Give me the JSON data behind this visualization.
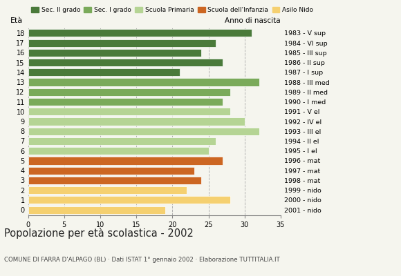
{
  "ages": [
    18,
    17,
    16,
    15,
    14,
    13,
    12,
    11,
    10,
    9,
    8,
    7,
    6,
    5,
    4,
    3,
    2,
    1,
    0
  ],
  "values": [
    31,
    26,
    24,
    27,
    21,
    32,
    28,
    27,
    28,
    30,
    32,
    26,
    25,
    27,
    23,
    24,
    22,
    28,
    19
  ],
  "right_labels": [
    "1983 - V sup",
    "1984 - VI sup",
    "1985 - III sup",
    "1986 - II sup",
    "1987 - I sup",
    "1988 - III med",
    "1989 - II med",
    "1990 - I med",
    "1991 - V el",
    "1992 - IV el",
    "1993 - III el",
    "1994 - II el",
    "1995 - I el",
    "1996 - mat",
    "1997 - mat",
    "1998 - mat",
    "1999 - nido",
    "2000 - nido",
    "2001 - nido"
  ],
  "colors": [
    "#4a7a3a",
    "#4a7a3a",
    "#4a7a3a",
    "#4a7a3a",
    "#4a7a3a",
    "#7aaa5a",
    "#7aaa5a",
    "#7aaa5a",
    "#b5d494",
    "#b5d494",
    "#b5d494",
    "#b5d494",
    "#b5d494",
    "#cc6622",
    "#cc6622",
    "#cc6622",
    "#f5d070",
    "#f5d070",
    "#f5d070"
  ],
  "legend_labels": [
    "Sec. II grado",
    "Sec. I grado",
    "Scuola Primaria",
    "Scuola dell'Infanzia",
    "Asilo Nido"
  ],
  "legend_colors": [
    "#4a7a3a",
    "#7aaa5a",
    "#b5d494",
    "#cc6622",
    "#f5d070"
  ],
  "title": "Popolazione per età scolastica - 2002",
  "subtitle": "COMUNE DI FARRA D'ALPAGO (BL) · Dati ISTAT 1° gennaio 2002 · Elaborazione TUTTITALIA.IT",
  "label_eta": "Età",
  "label_anno": "Anno di nascita",
  "xlim": [
    0,
    35
  ],
  "xticks": [
    0,
    5,
    10,
    15,
    20,
    25,
    30,
    35
  ],
  "bg_color": "#f5f5ee",
  "bar_height": 0.78
}
